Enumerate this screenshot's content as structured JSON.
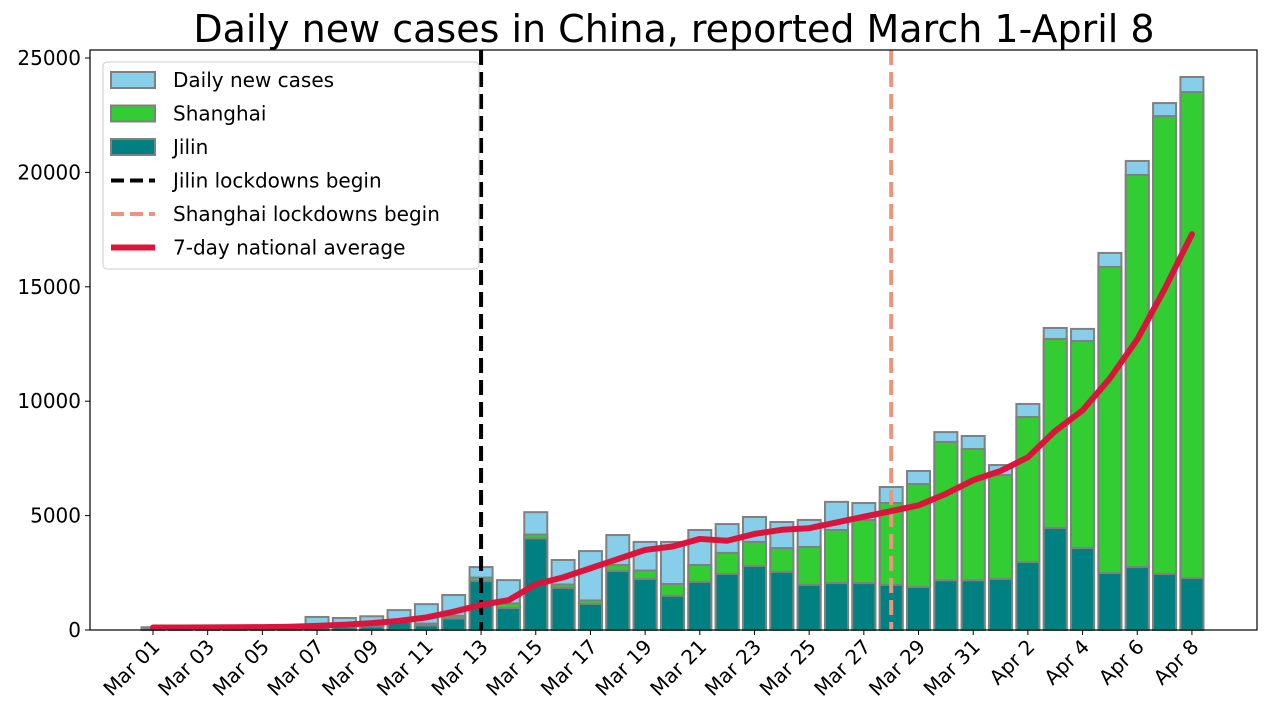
{
  "chart_data": {
    "type": "bar",
    "title": "Daily new cases in China, reported March 1-April 8",
    "xlabel": "",
    "ylabel": "",
    "ylim": [
      0,
      25300
    ],
    "yticks": [
      0,
      5000,
      10000,
      15000,
      20000,
      25000
    ],
    "categories": [
      "Mar 01",
      "Mar 02",
      "Mar 03",
      "Mar 04",
      "Mar 05",
      "Mar 06",
      "Mar 07",
      "Mar 08",
      "Mar 09",
      "Mar 10",
      "Mar 11",
      "Mar 12",
      "Mar 13",
      "Mar 14",
      "Mar 15",
      "Mar 16",
      "Mar 17",
      "Mar 18",
      "Mar 19",
      "Mar 20",
      "Mar 21",
      "Mar 22",
      "Mar 23",
      "Mar 24",
      "Mar 25",
      "Mar 26",
      "Mar 27",
      "Mar 28",
      "Mar 29",
      "Mar 30",
      "Mar 31",
      "Apr 1",
      "Apr 2",
      "Apr 3",
      "Apr 4",
      "Apr 5",
      "Apr 6",
      "Apr 7",
      "Apr 8"
    ],
    "xtick_labels": [
      "Mar 01",
      "Mar 03",
      "Mar 05",
      "Mar 07",
      "Mar 09",
      "Mar 11",
      "Mar 13",
      "Mar 15",
      "Mar 17",
      "Mar 19",
      "Mar 21",
      "Mar 23",
      "Mar 25",
      "Mar 27",
      "Mar 29",
      "Mar 31",
      "Apr 2",
      "Apr 4",
      "Apr 6",
      "Apr 8"
    ],
    "series": [
      {
        "name": "Daily new cases",
        "color": "#87CEEB",
        "values": [
          120,
          125,
          175,
          160,
          175,
          214,
          570,
          525,
          600,
          870,
          1130,
          1530,
          2750,
          2180,
          5150,
          3060,
          3450,
          4150,
          3850,
          3850,
          4370,
          4630,
          4940,
          4720,
          4810,
          5600,
          5550,
          6250,
          6950,
          8650,
          8480,
          7210,
          9880,
          13200,
          13160,
          16480,
          20500,
          23030,
          24170
        ]
      },
      {
        "name": "Shanghai",
        "color": "#32CD32",
        "values": [
          2,
          2,
          5,
          5,
          5,
          10,
          20,
          30,
          40,
          60,
          80,
          120,
          150,
          200,
          170,
          150,
          150,
          260,
          370,
          520,
          740,
          920,
          1050,
          1040,
          1660,
          2320,
          2760,
          3580,
          4500,
          6050,
          5740,
          4540,
          6340,
          8260,
          9050,
          13380,
          17140,
          20010,
          21240
        ]
      },
      {
        "name": "Jilin",
        "color": "#008080",
        "values": [
          30,
          30,
          40,
          40,
          40,
          50,
          100,
          120,
          150,
          350,
          200,
          500,
          2140,
          960,
          4000,
          1840,
          1140,
          2580,
          2230,
          1490,
          2100,
          2450,
          2800,
          2540,
          1970,
          2050,
          2050,
          1970,
          1880,
          2170,
          2170,
          2230,
          2970,
          4460,
          3580,
          2490,
          2750,
          2450,
          2270
        ]
      },
      {
        "name": "7-day national average",
        "color": "#DC143C",
        "type": "line",
        "values": [
          110,
          110,
          115,
          120,
          125,
          140,
          180,
          230,
          300,
          400,
          550,
          800,
          1100,
          1300,
          2000,
          2300,
          2700,
          3100,
          3500,
          3650,
          3980,
          3900,
          4200,
          4380,
          4450,
          4700,
          4950,
          5200,
          5450,
          5950,
          6550,
          6950,
          7550,
          8700,
          9600,
          11000,
          12700,
          14900,
          17300
        ]
      }
    ],
    "annotations": [
      {
        "name": "Jilin lockdowns begin",
        "x": "Mar 13",
        "color": "#000000",
        "style": "dashed"
      },
      {
        "name": "Shanghai lockdowns begin",
        "x": "Mar 28",
        "color": "#E9967A",
        "style": "dashed"
      }
    ],
    "legend": {
      "placement": "top-left",
      "entries": [
        "Daily new cases",
        "Shanghai",
        "Jilin",
        "Jilin lockdowns begin",
        "Shanghai lockdowns begin",
        "7-day national average"
      ]
    },
    "grid": false
  }
}
